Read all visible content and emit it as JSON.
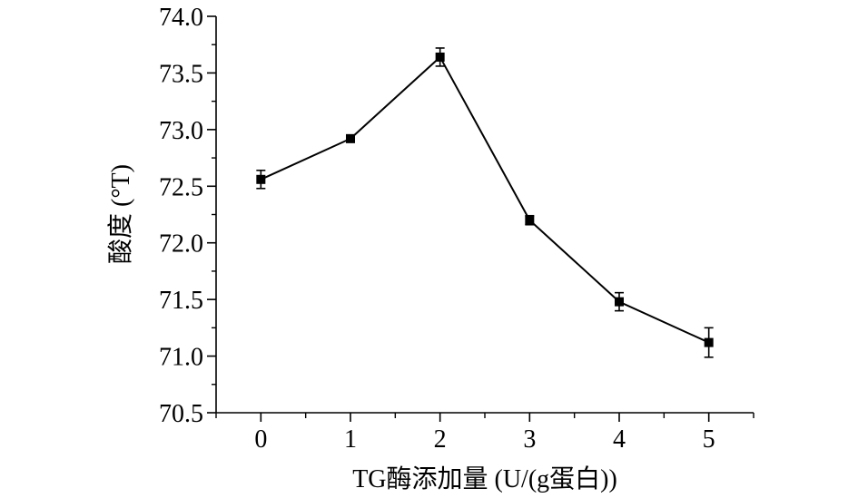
{
  "chart_data": {
    "type": "line",
    "title": "",
    "xlabel": "TG酶添加量 (U/(g蛋白))",
    "ylabel": "酸度 (°T)",
    "x": [
      0,
      1,
      2,
      3,
      4,
      5
    ],
    "xlim": [
      -0.5,
      5.5
    ],
    "x_ticks": [
      0,
      1,
      2,
      3,
      4,
      5
    ],
    "x_tick_labels": [
      "0",
      "1",
      "2",
      "3",
      "4",
      "5"
    ],
    "ylim": [
      70.5,
      74.0
    ],
    "y_ticks": [
      70.5,
      71.0,
      71.5,
      72.0,
      72.5,
      73.0,
      73.5,
      74.0
    ],
    "y_tick_labels": [
      "70.5",
      "71.0",
      "71.5",
      "72.0",
      "72.5",
      "73.0",
      "73.5",
      "74.0"
    ],
    "grid": false,
    "marker": "square",
    "series": [
      {
        "values": [
          72.56,
          72.92,
          73.64,
          72.2,
          71.48,
          71.12
        ],
        "errors": [
          0.08,
          0.03,
          0.08,
          0.04,
          0.08,
          0.13
        ],
        "color": "#000000"
      }
    ]
  }
}
